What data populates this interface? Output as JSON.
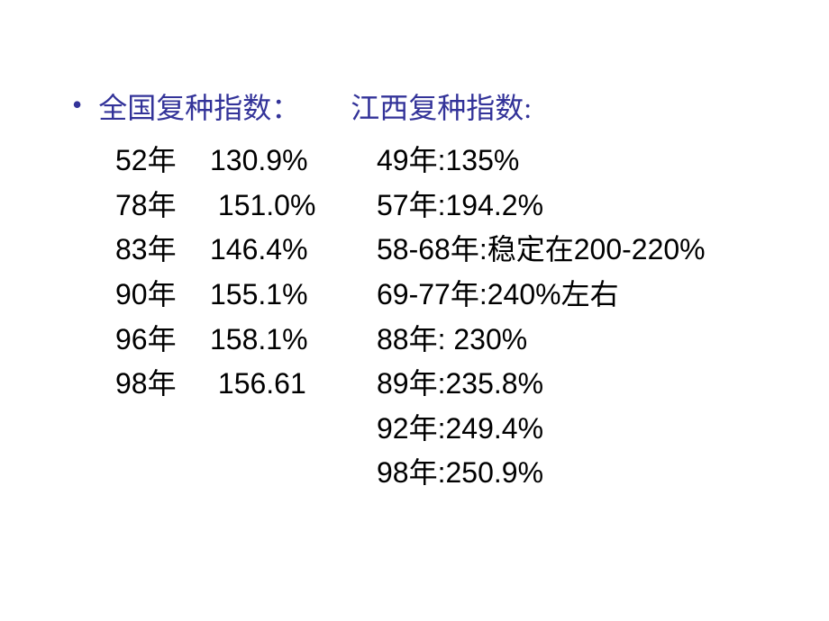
{
  "heading": {
    "left": "全国复种指数：",
    "right": "江西复种指数:"
  },
  "national": [
    {
      "year": "52年",
      "value": "130.9%"
    },
    {
      "year": "78年",
      "value": " 151.0%"
    },
    {
      "year": "83年",
      "value": "146.4%"
    },
    {
      "year": "90年",
      "value": "155.1%"
    },
    {
      "year": "96年",
      "value": "158.1%"
    },
    {
      "year": "98年",
      "value": " 156.61"
    }
  ],
  "jiangxi": [
    "49年:135%",
    "57年:194.2%",
    "58-68年:稳定在200-220%",
    "69-77年:240%左右",
    " 88年:  230%",
    " 89年:235.8%",
    "  92年:249.4%",
    "  98年:250.9%"
  ],
  "colors": {
    "heading": "#333399",
    "text": "#000000",
    "background": "#ffffff"
  },
  "fonts": {
    "base_size": 32,
    "heading_family": "SimSun",
    "data_family": "Arial"
  }
}
